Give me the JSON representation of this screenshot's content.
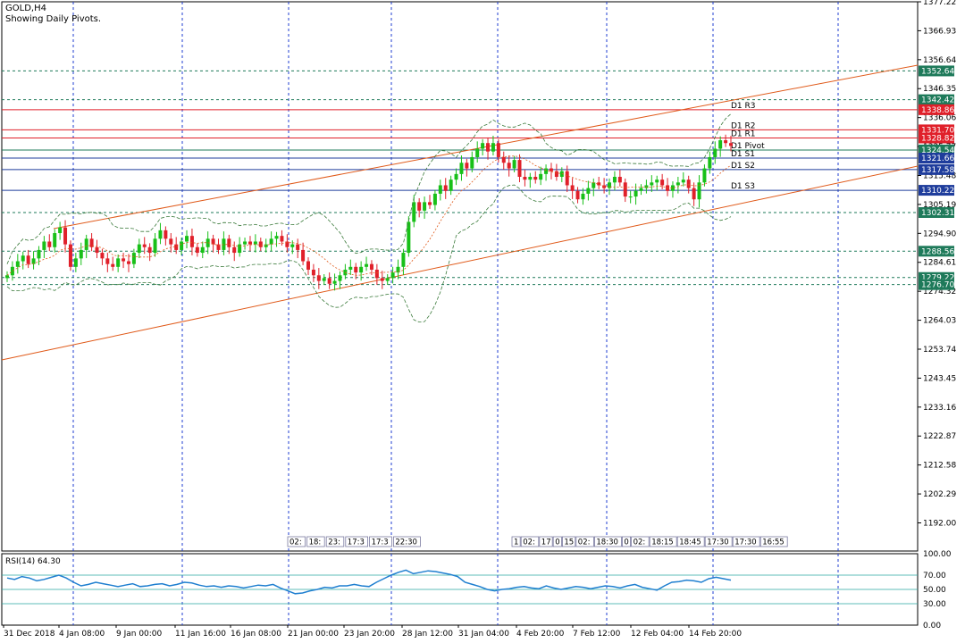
{
  "header": {
    "symbol": "GOLD,H4",
    "subtitle": "Showing Daily Pivots."
  },
  "rsi_label": "RSI(14) 64.30",
  "chart_data": {
    "type": "candlestick",
    "symbol": "GOLD",
    "timeframe": "H4",
    "ylim": [
      1182,
      1377.22
    ],
    "y_ticks": [
      1377.22,
      1366.93,
      1356.64,
      1346.35,
      1336.06,
      1325.77,
      1315.48,
      1305.19,
      1294.9,
      1284.61,
      1274.32,
      1264.03,
      1253.74,
      1243.45,
      1233.16,
      1222.87,
      1212.58,
      1202.29,
      1192.0
    ],
    "x_labels": [
      "31 Dec 2018",
      "4 Jan 08:00",
      "9 Jan 00:00",
      "11 Jan 16:00",
      "16 Jan 08:00",
      "21 Jan 00:00",
      "23 Jan 20:00",
      "28 Jan 12:00",
      "31 Jan 04:00",
      "4 Feb 20:00",
      "7 Feb 12:00",
      "12 Feb 04:00",
      "14 Feb 20:00"
    ],
    "price_tags": [
      {
        "value": 1352.64,
        "color": "#1e7a5a"
      },
      {
        "value": 1342.42,
        "color": "#1e7a5a"
      },
      {
        "value": 1338.86,
        "color": "#e0202a"
      },
      {
        "value": 1331.7,
        "color": "#e0202a"
      },
      {
        "value": 1328.82,
        "color": "#e0202a"
      },
      {
        "value": 1324.54,
        "color": "#1e7a5a"
      },
      {
        "value": 1321.66,
        "color": "#1f3d9c"
      },
      {
        "value": 1317.58,
        "color": "#1f3d9c"
      },
      {
        "value": 1310.22,
        "color": "#1f3d9c"
      },
      {
        "value": 1302.31,
        "color": "#1e7a5a"
      },
      {
        "value": 1288.56,
        "color": "#1e7a5a"
      },
      {
        "value": 1279.22,
        "color": "#1e7a5a"
      },
      {
        "value": 1276.7,
        "color": "#1e7a5a"
      }
    ],
    "pivot_levels": [
      {
        "name": "D1 R3",
        "value": 1338.86,
        "color": "#e0202a"
      },
      {
        "name": "D1 R2",
        "value": 1331.7,
        "color": "#e0202a"
      },
      {
        "name": "D1 R1",
        "value": 1328.82,
        "color": "#e0202a"
      },
      {
        "name": "D1 Pivot",
        "value": 1324.54,
        "color": "#1e7a5a"
      },
      {
        "name": "D1 S1",
        "value": 1321.66,
        "color": "#1f3d9c"
      },
      {
        "name": "D1 S2",
        "value": 1317.58,
        "color": "#1f3d9c"
      },
      {
        "name": "D1 S3",
        "value": 1310.22,
        "color": "#1f3d9c"
      }
    ],
    "horizontal_levels": [
      1352.64,
      1342.42,
      1302.31,
      1288.56,
      1279.22,
      1276.7
    ],
    "close_series": [
      1280,
      1283,
      1285,
      1287,
      1284,
      1286,
      1289,
      1292,
      1290,
      1295,
      1297,
      1291,
      1283,
      1286,
      1289,
      1293,
      1290,
      1288,
      1286,
      1284,
      1283,
      1286,
      1285,
      1284,
      1288,
      1291,
      1290,
      1288,
      1293,
      1296,
      1293,
      1291,
      1289,
      1292,
      1294,
      1290,
      1288,
      1290,
      1293,
      1291,
      1289,
      1293,
      1290,
      1288,
      1291,
      1292,
      1291,
      1292,
      1290,
      1291,
      1293,
      1294,
      1292,
      1290,
      1291,
      1289,
      1285,
      1282,
      1280,
      1278,
      1279,
      1277,
      1278,
      1280,
      1282,
      1283,
      1281,
      1283,
      1284,
      1282,
      1279,
      1278,
      1279,
      1281,
      1283,
      1288,
      1299,
      1306,
      1303,
      1306,
      1305,
      1309,
      1312,
      1310,
      1314,
      1316,
      1320,
      1318,
      1322,
      1325,
      1327,
      1324,
      1327,
      1322,
      1320,
      1318,
      1321,
      1315,
      1314,
      1315,
      1314,
      1316,
      1318,
      1317,
      1315,
      1317,
      1312,
      1310,
      1307,
      1309,
      1311,
      1313,
      1312,
      1311,
      1313,
      1315,
      1313,
      1308,
      1308,
      1310,
      1311,
      1312,
      1313,
      1314,
      1312,
      1310,
      1312,
      1313,
      1314,
      1311,
      1307,
      1313,
      1318,
      1322,
      1325,
      1328,
      1327,
      1326
    ],
    "rsi": {
      "levels": [
        70,
        50,
        30
      ],
      "y_ticks": [
        100.0,
        70.0,
        50.0,
        30.0,
        0.0
      ],
      "current": 64.3,
      "values": [
        66,
        64,
        68,
        66,
        62,
        64,
        67,
        70,
        66,
        60,
        55,
        57,
        60,
        58,
        56,
        54,
        56,
        58,
        54,
        55,
        57,
        58,
        55,
        57,
        60,
        59,
        56,
        54,
        55,
        53,
        55,
        54,
        52,
        54,
        56,
        55,
        57,
        52,
        48,
        44,
        45,
        48,
        50,
        53,
        52,
        55,
        55,
        57,
        55,
        54,
        60,
        65,
        70,
        74,
        77,
        72,
        74,
        76,
        75,
        73,
        71,
        68,
        60,
        57,
        54,
        50,
        48,
        50,
        51,
        53,
        54,
        52,
        51,
        55,
        52,
        50,
        52,
        54,
        53,
        51,
        53,
        55,
        54,
        52,
        55,
        57,
        53,
        51,
        49,
        55,
        60,
        61,
        63,
        62,
        60,
        65,
        67,
        65,
        63
      ]
    }
  },
  "time_labels_left": [
    "02:",
    "18:",
    "23:",
    "17:3",
    "17:3",
    "22:30"
  ],
  "time_labels_right": [
    "1",
    "02:",
    "17",
    "0",
    "15",
    "02:",
    "18:30",
    "0",
    "02:",
    "18:15",
    "18:45",
    "17:30",
    "17:30",
    "16:55"
  ]
}
